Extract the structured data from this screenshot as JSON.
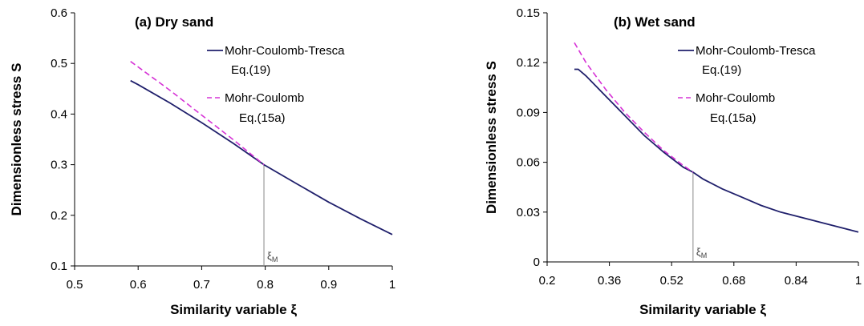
{
  "chart_data": [
    {
      "type": "line",
      "title": "(a) Dry sand",
      "xlabel": "Similarity variable ξ",
      "ylabel": "Dimensionless stress S",
      "xlim": [
        0.5,
        1.0
      ],
      "ylim": [
        0.1,
        0.6
      ],
      "xticks": [
        "0.5",
        "0.6",
        "0.7",
        "0.8",
        "0.9",
        "1"
      ],
      "yticks": [
        "0.1",
        "0.2",
        "0.3",
        "0.4",
        "0.5",
        "0.6"
      ],
      "grid": false,
      "legend_position": "top-right",
      "series": [
        {
          "name": "Mohr-Coulomb-Tresca",
          "name_line2": "Eq.(19)",
          "color": "#1f1f6b",
          "dash": "solid",
          "x": [
            0.588,
            0.6,
            0.65,
            0.7,
            0.75,
            0.798,
            0.85,
            0.9,
            0.95,
            1.0
          ],
          "y": [
            0.466,
            0.458,
            0.422,
            0.383,
            0.342,
            0.3,
            0.262,
            0.226,
            0.193,
            0.162
          ]
        },
        {
          "name": "Mohr-Coulomb",
          "name_line2": "Eq.(15a)",
          "color": "#d633d6",
          "dash": "dashed",
          "x": [
            0.588,
            0.6,
            0.65,
            0.7,
            0.75,
            0.798
          ],
          "y": [
            0.504,
            0.493,
            0.447,
            0.398,
            0.349,
            0.3
          ]
        }
      ],
      "annotation": {
        "text": "ξ",
        "subscript": "M",
        "x": 0.798
      }
    },
    {
      "type": "line",
      "title": "(b) Wet sand",
      "xlabel": "Similarity variable ξ",
      "ylabel": "Dimensionless stress S",
      "xlim": [
        0.2,
        1.0
      ],
      "ylim": [
        0,
        0.15
      ],
      "xticks": [
        "0.2",
        "0.36",
        "0.52",
        "0.68",
        "0.84",
        "1"
      ],
      "yticks": [
        "0",
        "0.03",
        "0.06",
        "0.09",
        "0.12",
        "0.15"
      ],
      "grid": false,
      "legend_position": "top-right",
      "series": [
        {
          "name": "Mohr-Coulomb-Tresca",
          "name_line2": "Eq.(19)",
          "color": "#1f1f6b",
          "dash": "solid",
          "x": [
            0.27,
            0.28,
            0.3,
            0.35,
            0.4,
            0.45,
            0.5,
            0.55,
            0.575,
            0.6,
            0.65,
            0.7,
            0.75,
            0.8,
            0.85,
            0.9,
            0.95,
            1.0
          ],
          "y": [
            0.116,
            0.116,
            0.112,
            0.1,
            0.088,
            0.076,
            0.066,
            0.057,
            0.054,
            0.05,
            0.044,
            0.039,
            0.034,
            0.03,
            0.027,
            0.024,
            0.021,
            0.018
          ]
        },
        {
          "name": "Mohr-Coulomb",
          "name_line2": "Eq.(15a)",
          "color": "#d633d6",
          "dash": "dashed",
          "x": [
            0.27,
            0.3,
            0.35,
            0.4,
            0.45,
            0.5,
            0.55,
            0.575
          ],
          "y": [
            0.132,
            0.12,
            0.104,
            0.09,
            0.078,
            0.067,
            0.058,
            0.054
          ]
        }
      ],
      "annotation": {
        "text": "ξ",
        "subscript": "M",
        "x": 0.575
      }
    }
  ]
}
